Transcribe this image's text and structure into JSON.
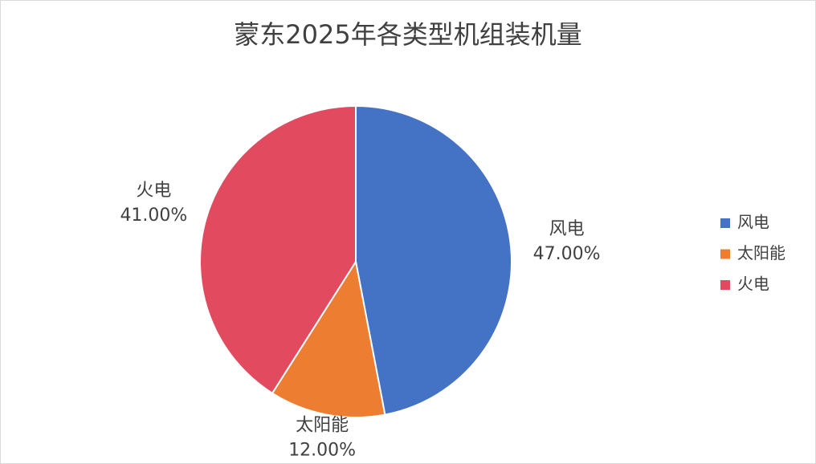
{
  "chart_data": {
    "type": "pie",
    "title": "蒙东2025年各类型机组装机量",
    "categories": [
      "风电",
      "太阳能",
      "火电"
    ],
    "values": [
      47,
      12,
      41
    ],
    "value_labels": [
      "47.00%",
      "12.00%",
      "41.00%"
    ],
    "colors": [
      "#4472c4",
      "#ed7d31",
      "#e24b5f"
    ],
    "legend": "right"
  }
}
